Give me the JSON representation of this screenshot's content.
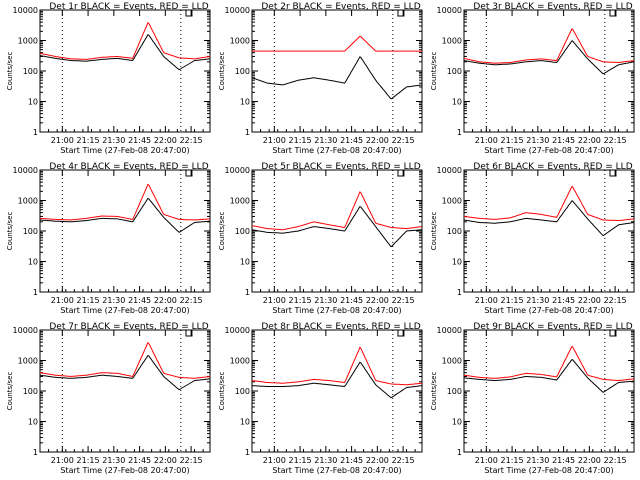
{
  "chart_data": [
    {
      "type": "line",
      "title": "Det 1r BLACK = Events, RED = LLD",
      "ylabel": "Counts/sec",
      "xlabel": "Start Time (27-Feb-08 20:47:00)",
      "x_ticks": [
        "21:00",
        "21:15",
        "21:30",
        "21:45",
        "22:00",
        "22:15"
      ],
      "y_ticks": [
        "1",
        "10",
        "100",
        "1000",
        "10000"
      ],
      "ylim": [
        1,
        10000
      ],
      "yscale": "log",
      "series": [
        {
          "color": "#ff0000",
          "values": [
            380,
            300,
            250,
            240,
            280,
            300,
            260,
            4000,
            400,
            270,
            250,
            300
          ]
        },
        {
          "color": "#000000",
          "values": [
            320,
            260,
            220,
            210,
            240,
            260,
            220,
            1600,
            300,
            110,
            220,
            250
          ]
        }
      ]
    },
    {
      "type": "line",
      "title": "Det 2r BLACK = Events, RED = LLD",
      "ylabel": "Counts/sec",
      "xlabel": "Start Time (27-Feb-08 20:47:00)",
      "x_ticks": [
        "21:00",
        "21:15",
        "21:30",
        "21:45",
        "22:00",
        "22:15"
      ],
      "y_ticks": [
        "1",
        "10",
        "100",
        "1000",
        "10000"
      ],
      "ylim": [
        1,
        10000
      ],
      "yscale": "log",
      "series": [
        {
          "color": "#ff0000",
          "values": [
            450,
            450,
            450,
            450,
            450,
            450,
            450,
            1400,
            450,
            450,
            450,
            450
          ]
        },
        {
          "color": "#000000",
          "values": [
            60,
            40,
            35,
            50,
            60,
            50,
            40,
            300,
            50,
            12,
            30,
            35
          ]
        }
      ]
    },
    {
      "type": "line",
      "title": "Det 3r BLACK = Events, RED = LLD",
      "ylabel": "Counts/sec",
      "xlabel": "Start Time (27-Feb-08 20:47:00)",
      "x_ticks": [
        "21:00",
        "21:15",
        "21:30",
        "21:45",
        "22:00",
        "22:15"
      ],
      "y_ticks": [
        "1",
        "10",
        "100",
        "1000",
        "10000"
      ],
      "ylim": [
        1,
        10000
      ],
      "yscale": "log",
      "series": [
        {
          "color": "#ff0000",
          "values": [
            260,
            200,
            180,
            190,
            230,
            250,
            220,
            2500,
            300,
            200,
            190,
            220
          ]
        },
        {
          "color": "#000000",
          "values": [
            220,
            180,
            160,
            170,
            200,
            220,
            190,
            1000,
            250,
            80,
            160,
            200
          ]
        }
      ]
    },
    {
      "type": "line",
      "title": "Det 4r BLACK = Events, RED = LLD",
      "ylabel": "Counts/sec",
      "xlabel": "Start Time (27-Feb-08 20:47:00)",
      "x_ticks": [
        "21:00",
        "21:15",
        "21:30",
        "21:45",
        "22:00",
        "22:15"
      ],
      "y_ticks": [
        "1",
        "10",
        "100",
        "1000",
        "10000"
      ],
      "ylim": [
        1,
        10000
      ],
      "yscale": "log",
      "series": [
        {
          "color": "#ff0000",
          "values": [
            260,
            240,
            230,
            260,
            310,
            300,
            240,
            3500,
            350,
            240,
            230,
            250
          ]
        },
        {
          "color": "#000000",
          "values": [
            230,
            210,
            200,
            220,
            260,
            250,
            200,
            1200,
            280,
            90,
            190,
            210
          ]
        }
      ]
    },
    {
      "type": "line",
      "title": "Det 5r BLACK = Events, RED = LLD",
      "ylabel": "Counts/sec",
      "xlabel": "Start Time (27-Feb-08 20:47:00)",
      "x_ticks": [
        "21:00",
        "21:15",
        "21:30",
        "21:45",
        "22:00",
        "22:15"
      ],
      "y_ticks": [
        "1",
        "10",
        "100",
        "1000",
        "10000"
      ],
      "ylim": [
        1,
        10000
      ],
      "yscale": "log",
      "series": [
        {
          "color": "#ff0000",
          "values": [
            150,
            120,
            110,
            140,
            200,
            160,
            130,
            2000,
            180,
            130,
            120,
            140
          ]
        },
        {
          "color": "#000000",
          "values": [
            110,
            90,
            85,
            100,
            140,
            120,
            100,
            650,
            140,
            30,
            100,
            110
          ]
        }
      ]
    },
    {
      "type": "line",
      "title": "Det 6r BLACK = Events, RED = LLD",
      "ylabel": "Counts/sec",
      "xlabel": "Start Time (27-Feb-08 20:47:00)",
      "x_ticks": [
        "21:00",
        "21:15",
        "21:30",
        "21:45",
        "22:00",
        "22:15"
      ],
      "y_ticks": [
        "1",
        "10",
        "100",
        "1000",
        "10000"
      ],
      "ylim": [
        1,
        10000
      ],
      "yscale": "log",
      "series": [
        {
          "color": "#ff0000",
          "values": [
            300,
            260,
            240,
            270,
            400,
            350,
            280,
            3000,
            350,
            230,
            220,
            250
          ]
        },
        {
          "color": "#000000",
          "values": [
            230,
            190,
            180,
            200,
            260,
            230,
            200,
            1000,
            250,
            70,
            160,
            190
          ]
        }
      ]
    },
    {
      "type": "line",
      "title": "Det 7r BLACK = Events, RED = LLD",
      "ylabel": "Counts/sec",
      "xlabel": "Start Time (27-Feb-08 20:47:00)",
      "x_ticks": [
        "21:00",
        "21:15",
        "21:30",
        "21:45",
        "22:00",
        "22:15"
      ],
      "y_ticks": [
        "1",
        "10",
        "100",
        "1000",
        "10000"
      ],
      "ylim": [
        1,
        10000
      ],
      "yscale": "log",
      "series": [
        {
          "color": "#ff0000",
          "values": [
            400,
            330,
            300,
            330,
            400,
            380,
            300,
            4000,
            380,
            280,
            260,
            300
          ]
        },
        {
          "color": "#000000",
          "values": [
            330,
            280,
            260,
            280,
            330,
            300,
            260,
            1500,
            300,
            110,
            220,
            250
          ]
        }
      ]
    },
    {
      "type": "line",
      "title": "Det 8r BLACK = Events, RED = LLD",
      "ylabel": "Counts/sec",
      "xlabel": "Start Time (27-Feb-08 20:47:00)",
      "x_ticks": [
        "21:00",
        "21:15",
        "21:30",
        "21:45",
        "22:00",
        "22:15"
      ],
      "y_ticks": [
        "1",
        "10",
        "100",
        "1000",
        "10000"
      ],
      "ylim": [
        1,
        10000
      ],
      "yscale": "log",
      "series": [
        {
          "color": "#ff0000",
          "values": [
            220,
            190,
            180,
            200,
            240,
            220,
            190,
            2800,
            220,
            170,
            160,
            180
          ]
        },
        {
          "color": "#000000",
          "values": [
            150,
            140,
            140,
            150,
            180,
            160,
            140,
            900,
            160,
            60,
            130,
            150
          ]
        }
      ]
    },
    {
      "type": "line",
      "title": "Det 9r BLACK = Events, RED = LLD",
      "ylabel": "Counts/sec",
      "xlabel": "Start Time (27-Feb-08 20:47:00)",
      "x_ticks": [
        "21:00",
        "21:15",
        "21:30",
        "21:45",
        "22:00",
        "22:15"
      ],
      "y_ticks": [
        "1",
        "10",
        "100",
        "1000",
        "10000"
      ],
      "ylim": [
        1,
        10000
      ],
      "yscale": "log",
      "series": [
        {
          "color": "#ff0000",
          "values": [
            330,
            280,
            260,
            290,
            380,
            350,
            290,
            3000,
            330,
            240,
            220,
            250
          ]
        },
        {
          "color": "#000000",
          "values": [
            270,
            240,
            220,
            240,
            300,
            280,
            230,
            1100,
            270,
            90,
            190,
            210
          ]
        }
      ]
    }
  ]
}
